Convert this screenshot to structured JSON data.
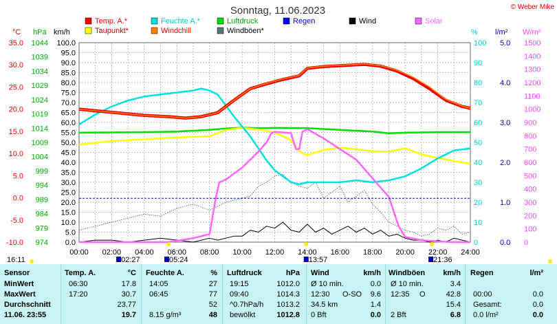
{
  "header": {
    "title": "Sonntag, 11.06.2023",
    "copyright": "© Weber Mike"
  },
  "chart_data": {
    "type": "line",
    "title": "Sonntag, 11.06.2023",
    "x_tick_labels": [
      "00:00",
      "02:00",
      "04:00",
      "06:00",
      "08:00",
      "10:00",
      "12:00",
      "14:00",
      "16:00",
      "18:00",
      "20:00",
      "22:00",
      "24:00"
    ],
    "xlim": [
      0,
      24
    ],
    "grid": true,
    "axes": [
      {
        "id": "temp",
        "unit": "°C",
        "range": [
          -10,
          35
        ],
        "ticks": [
          "35.0",
          "30.0",
          "25.0",
          "20.0",
          "15.0",
          "10.0",
          "5.0",
          "0.0",
          "-5.0",
          "-10.0"
        ],
        "color": "#ff0000"
      },
      {
        "id": "press",
        "unit": "hPa",
        "range": [
          974,
          1044
        ],
        "ticks": [
          "1044",
          "1039",
          "1034",
          "1029",
          "1024",
          "1019",
          "1014",
          "1009",
          "1004",
          "999",
          "994",
          "989",
          "984",
          "979",
          "974"
        ],
        "color": "#00aa00"
      },
      {
        "id": "wind",
        "unit": "km/h",
        "range": [
          0,
          100
        ],
        "ticks": [
          "100.0",
          "95.0",
          "90.0",
          "85.0",
          "80.0",
          "75.0",
          "70.0",
          "65.0",
          "60.0",
          "55.0",
          "50.0",
          "45.0",
          "40.0",
          "35.0",
          "30.0",
          "25.0",
          "20.0",
          "15.0",
          "10.0",
          "5.0",
          "0.0"
        ],
        "color": "#000000"
      },
      {
        "id": "hum",
        "unit": "%",
        "range": [
          0,
          100
        ],
        "ticks": [
          "100",
          "90",
          "80",
          "70",
          "60",
          "50",
          "40",
          "30",
          "20",
          "10",
          "0"
        ],
        "color": "#00cccc"
      },
      {
        "id": "rain",
        "unit": "l/m²",
        "range": [
          0,
          5
        ],
        "ticks": [
          "5.0",
          "4.0",
          "3.0",
          "2.0",
          "1.0",
          "0.0"
        ],
        "color": "#0000cc"
      },
      {
        "id": "solar",
        "unit": "W/m²",
        "range": [
          0,
          1500
        ],
        "ticks": [
          "1500",
          "1400",
          "1300",
          "1200",
          "1100",
          "1000",
          "900",
          "800",
          "700",
          "600",
          "500",
          "400",
          "300",
          "200",
          "100",
          "0"
        ],
        "color": "#ff44ff"
      }
    ],
    "legend": [
      {
        "name": "Temp. A.*",
        "color": "#ff0000"
      },
      {
        "name": "Feuchte A.*",
        "color": "#00e0e0"
      },
      {
        "name": "Luftdruck",
        "color": "#00dd00"
      },
      {
        "name": "Regen",
        "color": "#0000ff"
      },
      {
        "name": "Wind",
        "color": "#000000"
      },
      {
        "name": "Solar",
        "color": "#ff66ff"
      },
      {
        "name": "Taupunkt*",
        "color": "#ffff00"
      },
      {
        "name": "Windchill",
        "color": "#ff8000"
      },
      {
        "name": "Windböen*",
        "color": "#557777"
      }
    ],
    "series": [
      {
        "name": "Temp. A.*",
        "axis": "temp",
        "color": "#ee0000",
        "x": [
          0,
          2,
          4,
          5.5,
          6.5,
          7.5,
          8.5,
          9.5,
          10.5,
          11.5,
          12.5,
          13.5,
          14,
          15,
          16,
          17,
          17.5,
          18.5,
          19.5,
          20.5,
          21.5,
          22.5,
          23.5,
          24
        ],
        "y": [
          20.0,
          19.3,
          18.6,
          18.3,
          18.0,
          18.3,
          19.2,
          22.0,
          24.6,
          25.7,
          26.7,
          27.5,
          29.2,
          29.6,
          29.8,
          30.0,
          30.1,
          29.7,
          28.6,
          26.9,
          24.6,
          22.0,
          20.6,
          20.2
        ]
      },
      {
        "name": "Windchill",
        "axis": "temp",
        "color": "#ff8000",
        "x": [
          0,
          2,
          4,
          5.5,
          6.5,
          7.5,
          8.5,
          9.5,
          10.5,
          11.5,
          12.5,
          13.5,
          14,
          15,
          16,
          17,
          17.5,
          18.5,
          19.5,
          20.5,
          21.5,
          22.5,
          23.5,
          24
        ],
        "y": [
          20.0,
          19.3,
          18.6,
          18.3,
          18.0,
          18.3,
          19.2,
          22.0,
          24.6,
          25.8,
          26.8,
          27.6,
          29.3,
          29.7,
          29.9,
          30.1,
          30.2,
          29.8,
          28.8,
          27.2,
          25.0,
          22.2,
          20.7,
          20.2
        ]
      },
      {
        "name": "Feuchte A.*",
        "axis": "hum",
        "color": "#00e0e0",
        "x": [
          0,
          1,
          2,
          3,
          4,
          5,
          6,
          7,
          7.5,
          8,
          8.5,
          9.5,
          10,
          10.5,
          11,
          11.5,
          12,
          12.5,
          13,
          13.5,
          14,
          15,
          16,
          17,
          18,
          19,
          20,
          21,
          22,
          23,
          24
        ],
        "y": [
          59,
          64,
          68,
          71,
          73,
          74,
          75,
          76,
          77,
          76,
          74,
          63,
          58,
          53,
          47,
          41,
          36,
          33,
          30,
          29,
          30,
          30,
          30,
          31,
          30,
          31,
          33,
          37,
          42,
          46,
          47
        ]
      },
      {
        "name": "Luftdruck",
        "axis": "press",
        "color": "#00dd00",
        "x": [
          0,
          2,
          4,
          6,
          8,
          9,
          10,
          11,
          12,
          14,
          16,
          18,
          19,
          20,
          22,
          24
        ],
        "y": [
          1012.4,
          1012.5,
          1012.6,
          1012.8,
          1013.4,
          1013.9,
          1014.2,
          1014.0,
          1014.1,
          1014.0,
          1013.4,
          1012.8,
          1012.2,
          1012.4,
          1012.6,
          1012.6
        ]
      },
      {
        "name": "Taupunkt*",
        "axis": "temp",
        "color": "#ffff00",
        "x": [
          0,
          2,
          4,
          6,
          8,
          9,
          10,
          11,
          12,
          13,
          13.5,
          14,
          15,
          16,
          17,
          18,
          19,
          20,
          21,
          22,
          23,
          24
        ],
        "y": [
          12.0,
          12.8,
          13.2,
          13.6,
          13.9,
          15.3,
          15.8,
          15.4,
          14.8,
          13.0,
          10.5,
          9.6,
          10.8,
          11.3,
          11.0,
          10.5,
          10.4,
          11.2,
          9.8,
          9.0,
          8.3,
          7.7
        ]
      },
      {
        "name": "Solar",
        "axis": "solar",
        "color": "#ff66ff",
        "x": [
          0,
          5.4,
          6,
          7,
          8,
          8.4,
          8.6,
          9,
          10,
          11,
          11.5,
          11.8,
          12,
          13,
          13.3,
          13.5,
          13.7,
          14,
          15,
          16,
          17,
          18,
          19,
          19.6,
          20,
          21,
          22,
          23,
          24
        ],
        "y": [
          0,
          0,
          10,
          30,
          60,
          340,
          450,
          470,
          560,
          680,
          750,
          820,
          830,
          820,
          700,
          700,
          830,
          850,
          780,
          700,
          620,
          480,
          340,
          120,
          40,
          15,
          5,
          0,
          0
        ]
      },
      {
        "name": "Windböen*",
        "axis": "wind",
        "color": "#557777",
        "x": [
          0,
          1,
          2,
          3,
          4,
          5,
          6,
          7,
          8,
          9,
          10,
          10.5,
          11,
          11.5,
          12,
          12.5,
          13,
          13.5,
          14,
          14.5,
          15,
          15.5,
          16,
          16.5,
          17,
          17.5,
          18,
          18.5,
          19,
          19.5,
          20,
          20.5,
          21,
          21.5,
          22,
          22.5,
          23,
          23.5,
          24
        ],
        "y": [
          6,
          8,
          10,
          12,
          14,
          13,
          17,
          19,
          16,
          20,
          22,
          23,
          28,
          30,
          33,
          34,
          30,
          28,
          27,
          30,
          22,
          25,
          28,
          20,
          23,
          26,
          19,
          15,
          10,
          8,
          6,
          5,
          3,
          4,
          7,
          6,
          8,
          4,
          5
        ]
      },
      {
        "name": "Wind",
        "axis": "wind",
        "color": "#000000",
        "x": [
          0,
          1,
          2,
          3,
          4,
          5,
          6,
          7,
          8,
          8.5,
          9,
          9.5,
          10,
          10.5,
          11,
          11.5,
          12,
          12.5,
          13,
          13.5,
          14,
          14.5,
          15,
          15.5,
          16,
          16.5,
          17,
          17.5,
          18,
          18.5,
          19,
          19.5,
          20,
          20.5,
          21,
          21.5,
          22,
          22.5,
          23,
          23.5,
          24
        ],
        "y": [
          0,
          1,
          1,
          0,
          1,
          2,
          1,
          0,
          2,
          1,
          2,
          3,
          3,
          6,
          5,
          8,
          7,
          10,
          6,
          5,
          9,
          5,
          7,
          4,
          6,
          8,
          5,
          7,
          4,
          6,
          3,
          4,
          2,
          1,
          1,
          0,
          1,
          0,
          2,
          1,
          0
        ]
      }
    ],
    "rain_line": {
      "name": "Regen",
      "axis": "rain",
      "value": 1.1,
      "color": "#0000cc"
    },
    "time_markers": [
      {
        "label": "02:27",
        "x": 2.45
      },
      {
        "label": "05:24",
        "x": 5.4
      },
      {
        "label": "13:57",
        "x": 13.95
      },
      {
        "label": "21:36",
        "x": 21.6
      }
    ],
    "left_marker": "16:11"
  },
  "stats": {
    "headers": [
      "Sensor",
      "Temp. A.",
      "°C",
      "Feuchte A.",
      "%",
      "Luftdruck",
      "hPa",
      "Wind",
      "km/h",
      "Windböen",
      "km/h",
      "Regen",
      "l/m²"
    ],
    "rows": [
      {
        "label": "MinWert",
        "temp_time": "06:30",
        "temp": "17.8",
        "hum_time": "14:05",
        "hum": "27",
        "press_time": "19:15",
        "press": "1012.0",
        "wind_desc": "Ø 10 min.",
        "wind": "0.0",
        "gust_desc": "Ø 10 min.",
        "gust": "3.4",
        "rain_desc": "",
        "rain": ""
      },
      {
        "label": "MaxWert",
        "temp_time": "17:20",
        "temp": "30.7",
        "hum_time": "06:45",
        "hum": "77",
        "press_time": "09:40",
        "press": "1014.3",
        "wind_desc": "12:30",
        "wind_dir": "O-SO",
        "wind": "9.6",
        "gust_desc": "12:35",
        "gust_dir": "O",
        "gust": "42.8",
        "rain_desc": "00:00",
        "rain": "0.0"
      },
      {
        "label": "Durchschnitt",
        "temp_time": "",
        "temp": "23.77",
        "hum_time": "",
        "hum": "52",
        "press_time": "^0.7hPa/h",
        "press": "1013.2",
        "wind_desc": "34.5 km",
        "wind": "1.4",
        "gust_desc": "",
        "gust": "15.4",
        "rain_desc": "Gesamt:",
        "rain": "0.0"
      },
      {
        "label": "11.06. 23:55",
        "temp_time": "",
        "temp": "19.7",
        "hum_time": "8.15 g/m³",
        "hum": "48",
        "press_time": "bewölkt",
        "press": "1012.8",
        "wind_desc": "0 Bft",
        "wind": "0.0",
        "gust_desc": "2 Bft",
        "gust": "6.8",
        "rain_desc": "0.0 l/m²",
        "rain": "0.0"
      }
    ]
  }
}
